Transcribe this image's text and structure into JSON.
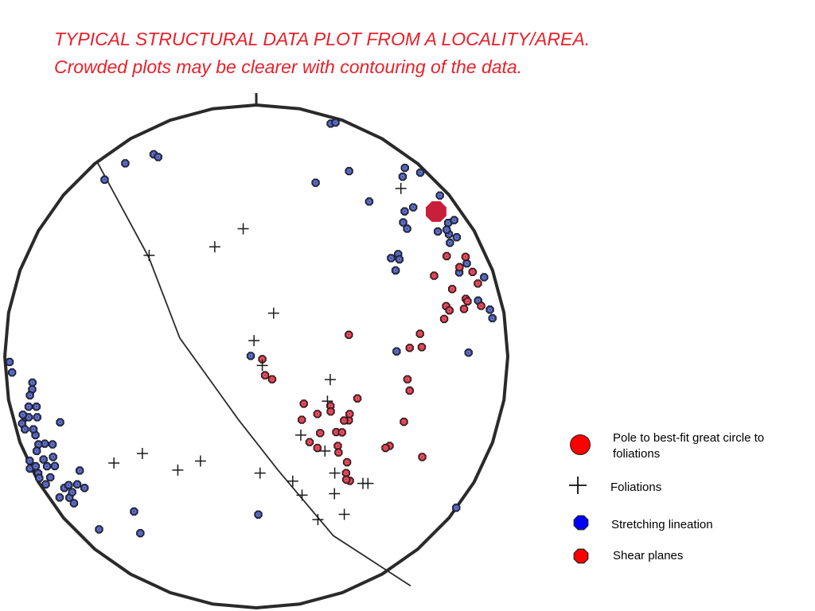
{
  "title_lines": [
    "TYPICAL STRUCTURAL DATA PLOT FROM A LOCALITY/AREA.",
    "Crowded plots may be clearer with contouring of the data."
  ],
  "colors": {
    "title": "#e8202a",
    "lineation_fill": "#3b4aa6",
    "shear_fill": "#cc2a3c",
    "pole_fill": "#c8203a",
    "legend_lineation": "#0000ff",
    "legend_shear": "#ff0000",
    "legend_pole": "#ff0000",
    "outline": "#2a2a2a"
  },
  "legend": [
    {
      "symbol": "pole",
      "label": "Pole to best-fit great circle to foliations"
    },
    {
      "symbol": "foliation",
      "label": "Foliations"
    },
    {
      "symbol": "lineation",
      "label": "Stretching lineation"
    },
    {
      "symbol": "shear",
      "label": "Shear planes"
    }
  ],
  "chart_data": {
    "type": "scatter",
    "projection": "stereonet",
    "net_radius": 1,
    "north_tick": true,
    "best_fit_great_circle": [
      [
        -0.634,
        0.776
      ],
      [
        -0.427,
        0.393
      ],
      [
        -0.304,
        0.073
      ],
      [
        -0.07,
        -0.253
      ],
      [
        0.086,
        -0.452
      ],
      [
        0.306,
        -0.713
      ],
      [
        0.614,
        -0.913
      ]
    ],
    "series": [
      {
        "name": "Pole to best-fit great circle to foliations",
        "symbol": "pole",
        "points": [
          [
            0.715,
            0.576
          ]
        ]
      },
      {
        "name": "Foliations",
        "symbol": "foliation",
        "points": [
          [
            0.575,
            0.668
          ],
          [
            -0.052,
            0.508
          ],
          [
            -0.165,
            0.436
          ],
          [
            -0.426,
            0.402
          ],
          [
            0.069,
            0.172
          ],
          [
            -0.009,
            0.063
          ],
          [
            0.024,
            -0.036
          ],
          [
            0.294,
            -0.092
          ],
          [
            0.283,
            -0.178
          ],
          [
            0.177,
            -0.313
          ],
          [
            0.273,
            -0.376
          ],
          [
            -0.453,
            -0.386
          ],
          [
            -0.566,
            -0.424
          ],
          [
            -0.222,
            -0.416
          ],
          [
            -0.312,
            -0.452
          ],
          [
            0.015,
            -0.464
          ],
          [
            0.312,
            -0.464
          ],
          [
            0.145,
            -0.496
          ],
          [
            0.424,
            -0.505
          ],
          [
            0.444,
            -0.505
          ],
          [
            0.182,
            -0.552
          ],
          [
            0.311,
            -0.546
          ],
          [
            0.245,
            -0.649
          ],
          [
            0.35,
            -0.628
          ]
        ]
      },
      {
        "name": "Stretching lineation",
        "symbol": "lineation",
        "points": [
          [
            0.296,
            0.926
          ],
          [
            0.315,
            0.93
          ],
          [
            -0.408,
            0.804
          ],
          [
            -0.39,
            0.793
          ],
          [
            -0.521,
            0.768
          ],
          [
            -0.603,
            0.703
          ],
          [
            0.369,
            0.737
          ],
          [
            0.236,
            0.691
          ],
          [
            0.591,
            0.75
          ],
          [
            0.652,
            0.731
          ],
          [
            0.582,
            0.715
          ],
          [
            0.73,
            0.64
          ],
          [
            0.449,
            0.616
          ],
          [
            0.624,
            0.593
          ],
          [
            0.59,
            0.577
          ],
          [
            0.763,
            0.531
          ],
          [
            0.787,
            0.542
          ],
          [
            0.766,
            0.486
          ],
          [
            0.757,
            0.504
          ],
          [
            0.797,
            0.474
          ],
          [
            0.77,
            0.452
          ],
          [
            0.722,
            0.497
          ],
          [
            0.584,
            0.533
          ],
          [
            0.6,
            0.508
          ],
          [
            0.564,
            0.407
          ],
          [
            0.569,
            0.386
          ],
          [
            0.536,
            0.391
          ],
          [
            0.837,
            0.37
          ],
          [
            0.807,
            0.334
          ],
          [
            0.906,
            0.315
          ],
          [
            0.882,
            0.222
          ],
          [
            0.929,
            0.186
          ],
          [
            0.939,
            0.152
          ],
          [
            0.554,
            0.342
          ],
          [
            0.844,
            0.015
          ],
          [
            0.558,
            0.02
          ],
          [
            -0.022,
            0.002
          ],
          [
            0.795,
            -0.602
          ],
          [
            -0.89,
            -0.104
          ],
          [
            -0.971,
            -0.064
          ],
          [
            -0.891,
            -0.131
          ],
          [
            -0.9,
            -0.155
          ],
          [
            -0.874,
            -0.2
          ],
          [
            -0.905,
            -0.2
          ],
          [
            -0.918,
            -0.242
          ],
          [
            -0.931,
            -0.267
          ],
          [
            -0.905,
            -0.242
          ],
          [
            -0.871,
            -0.242
          ],
          [
            -0.878,
            -0.313
          ],
          [
            -0.78,
            -0.262
          ],
          [
            -0.841,
            -0.347
          ],
          [
            -0.92,
            -0.29
          ],
          [
            -0.886,
            -0.29
          ],
          [
            -0.866,
            -0.35
          ],
          [
            -0.873,
            -0.376
          ],
          [
            -0.81,
            -0.35
          ],
          [
            -0.901,
            -0.415
          ],
          [
            -0.9,
            -0.446
          ],
          [
            -0.877,
            -0.437
          ],
          [
            -0.846,
            -0.41
          ],
          [
            -0.832,
            -0.437
          ],
          [
            -0.808,
            -0.4
          ],
          [
            -0.801,
            -0.436
          ],
          [
            -0.867,
            -0.465
          ],
          [
            -0.863,
            -0.484
          ],
          [
            -0.819,
            -0.481
          ],
          [
            -0.837,
            -0.509
          ],
          [
            -0.763,
            -0.523
          ],
          [
            -0.746,
            -0.512
          ],
          [
            -0.702,
            -0.454
          ],
          [
            -0.712,
            -0.509
          ],
          [
            -0.782,
            -0.561
          ],
          [
            -0.743,
            -0.562
          ],
          [
            -0.732,
            -0.54
          ],
          [
            -0.683,
            -0.523
          ],
          [
            -0.725,
            -0.584
          ],
          [
            -0.625,
            -0.688
          ],
          [
            -0.486,
            -0.617
          ],
          [
            -0.461,
            -0.703
          ],
          [
            0.008,
            -0.629
          ],
          [
            -0.981,
            -0.022
          ],
          [
            -0.928,
            -0.232
          ]
        ]
      },
      {
        "name": "Shear planes",
        "symbol": "shear",
        "points": [
          [
            0.757,
            0.399
          ],
          [
            0.832,
            0.396
          ],
          [
            0.808,
            0.355
          ],
          [
            0.86,
            0.336
          ],
          [
            0.707,
            0.321
          ],
          [
            0.881,
            0.29
          ],
          [
            0.779,
            0.268
          ],
          [
            0.833,
            0.229
          ],
          [
            0.84,
            0.219
          ],
          [
            0.826,
            0.189
          ],
          [
            0.755,
            0.2
          ],
          [
            0.768,
            0.183
          ],
          [
            0.894,
            0.201
          ],
          [
            0.747,
            0.149
          ],
          [
            0.651,
            0.09
          ],
          [
            0.368,
            0.086
          ],
          [
            0.658,
            0.037
          ],
          [
            0.61,
            0.034
          ],
          [
            0.024,
            -0.011
          ],
          [
            0.063,
            -0.091
          ],
          [
            0.601,
            -0.091
          ],
          [
            0.035,
            -0.075
          ],
          [
            0.61,
            -0.136
          ],
          [
            0.402,
            -0.167
          ],
          [
            0.295,
            -0.197
          ],
          [
            0.189,
            -0.188
          ],
          [
            0.243,
            -0.229
          ],
          [
            0.296,
            -0.219
          ],
          [
            0.181,
            -0.252
          ],
          [
            0.587,
            -0.26
          ],
          [
            0.254,
            -0.305
          ],
          [
            0.318,
            -0.301
          ],
          [
            0.341,
            -0.302
          ],
          [
            0.368,
            -0.254
          ],
          [
            0.371,
            -0.229
          ],
          [
            0.349,
            -0.255
          ],
          [
            0.212,
            -0.341
          ],
          [
            0.324,
            -0.356
          ],
          [
            0.243,
            -0.364
          ],
          [
            0.327,
            -0.382
          ],
          [
            0.53,
            -0.356
          ],
          [
            0.514,
            -0.364
          ],
          [
            0.66,
            -0.4
          ],
          [
            0.361,
            -0.421
          ],
          [
            0.357,
            -0.464
          ],
          [
            0.372,
            -0.495
          ],
          [
            0.358,
            -0.49
          ]
        ]
      }
    ]
  }
}
